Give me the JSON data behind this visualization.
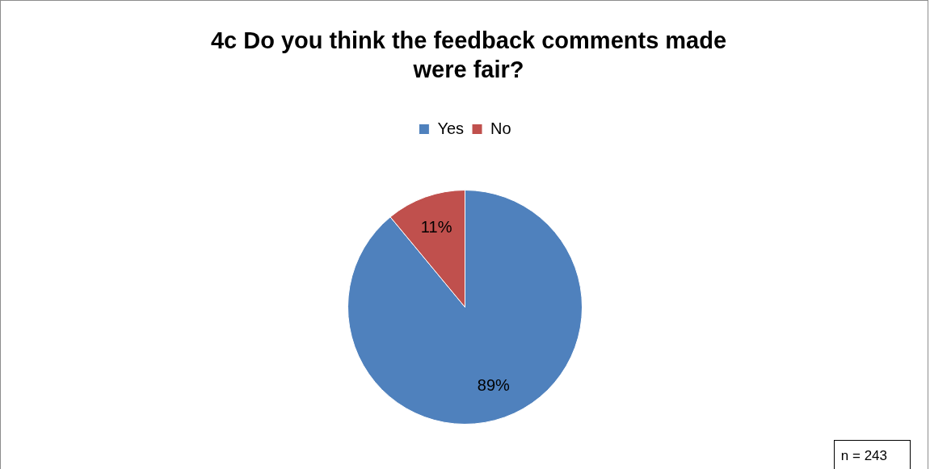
{
  "chart_data": {
    "type": "pie",
    "title": "4c Do you think the feedback comments made were fair?",
    "categories": [
      "Yes",
      "No"
    ],
    "values": [
      89,
      11
    ],
    "colors": [
      "#4f81bd",
      "#c0504d"
    ],
    "value_labels": [
      "89%",
      "11%"
    ],
    "legend": "top",
    "annotations": [
      "n = 243"
    ]
  }
}
